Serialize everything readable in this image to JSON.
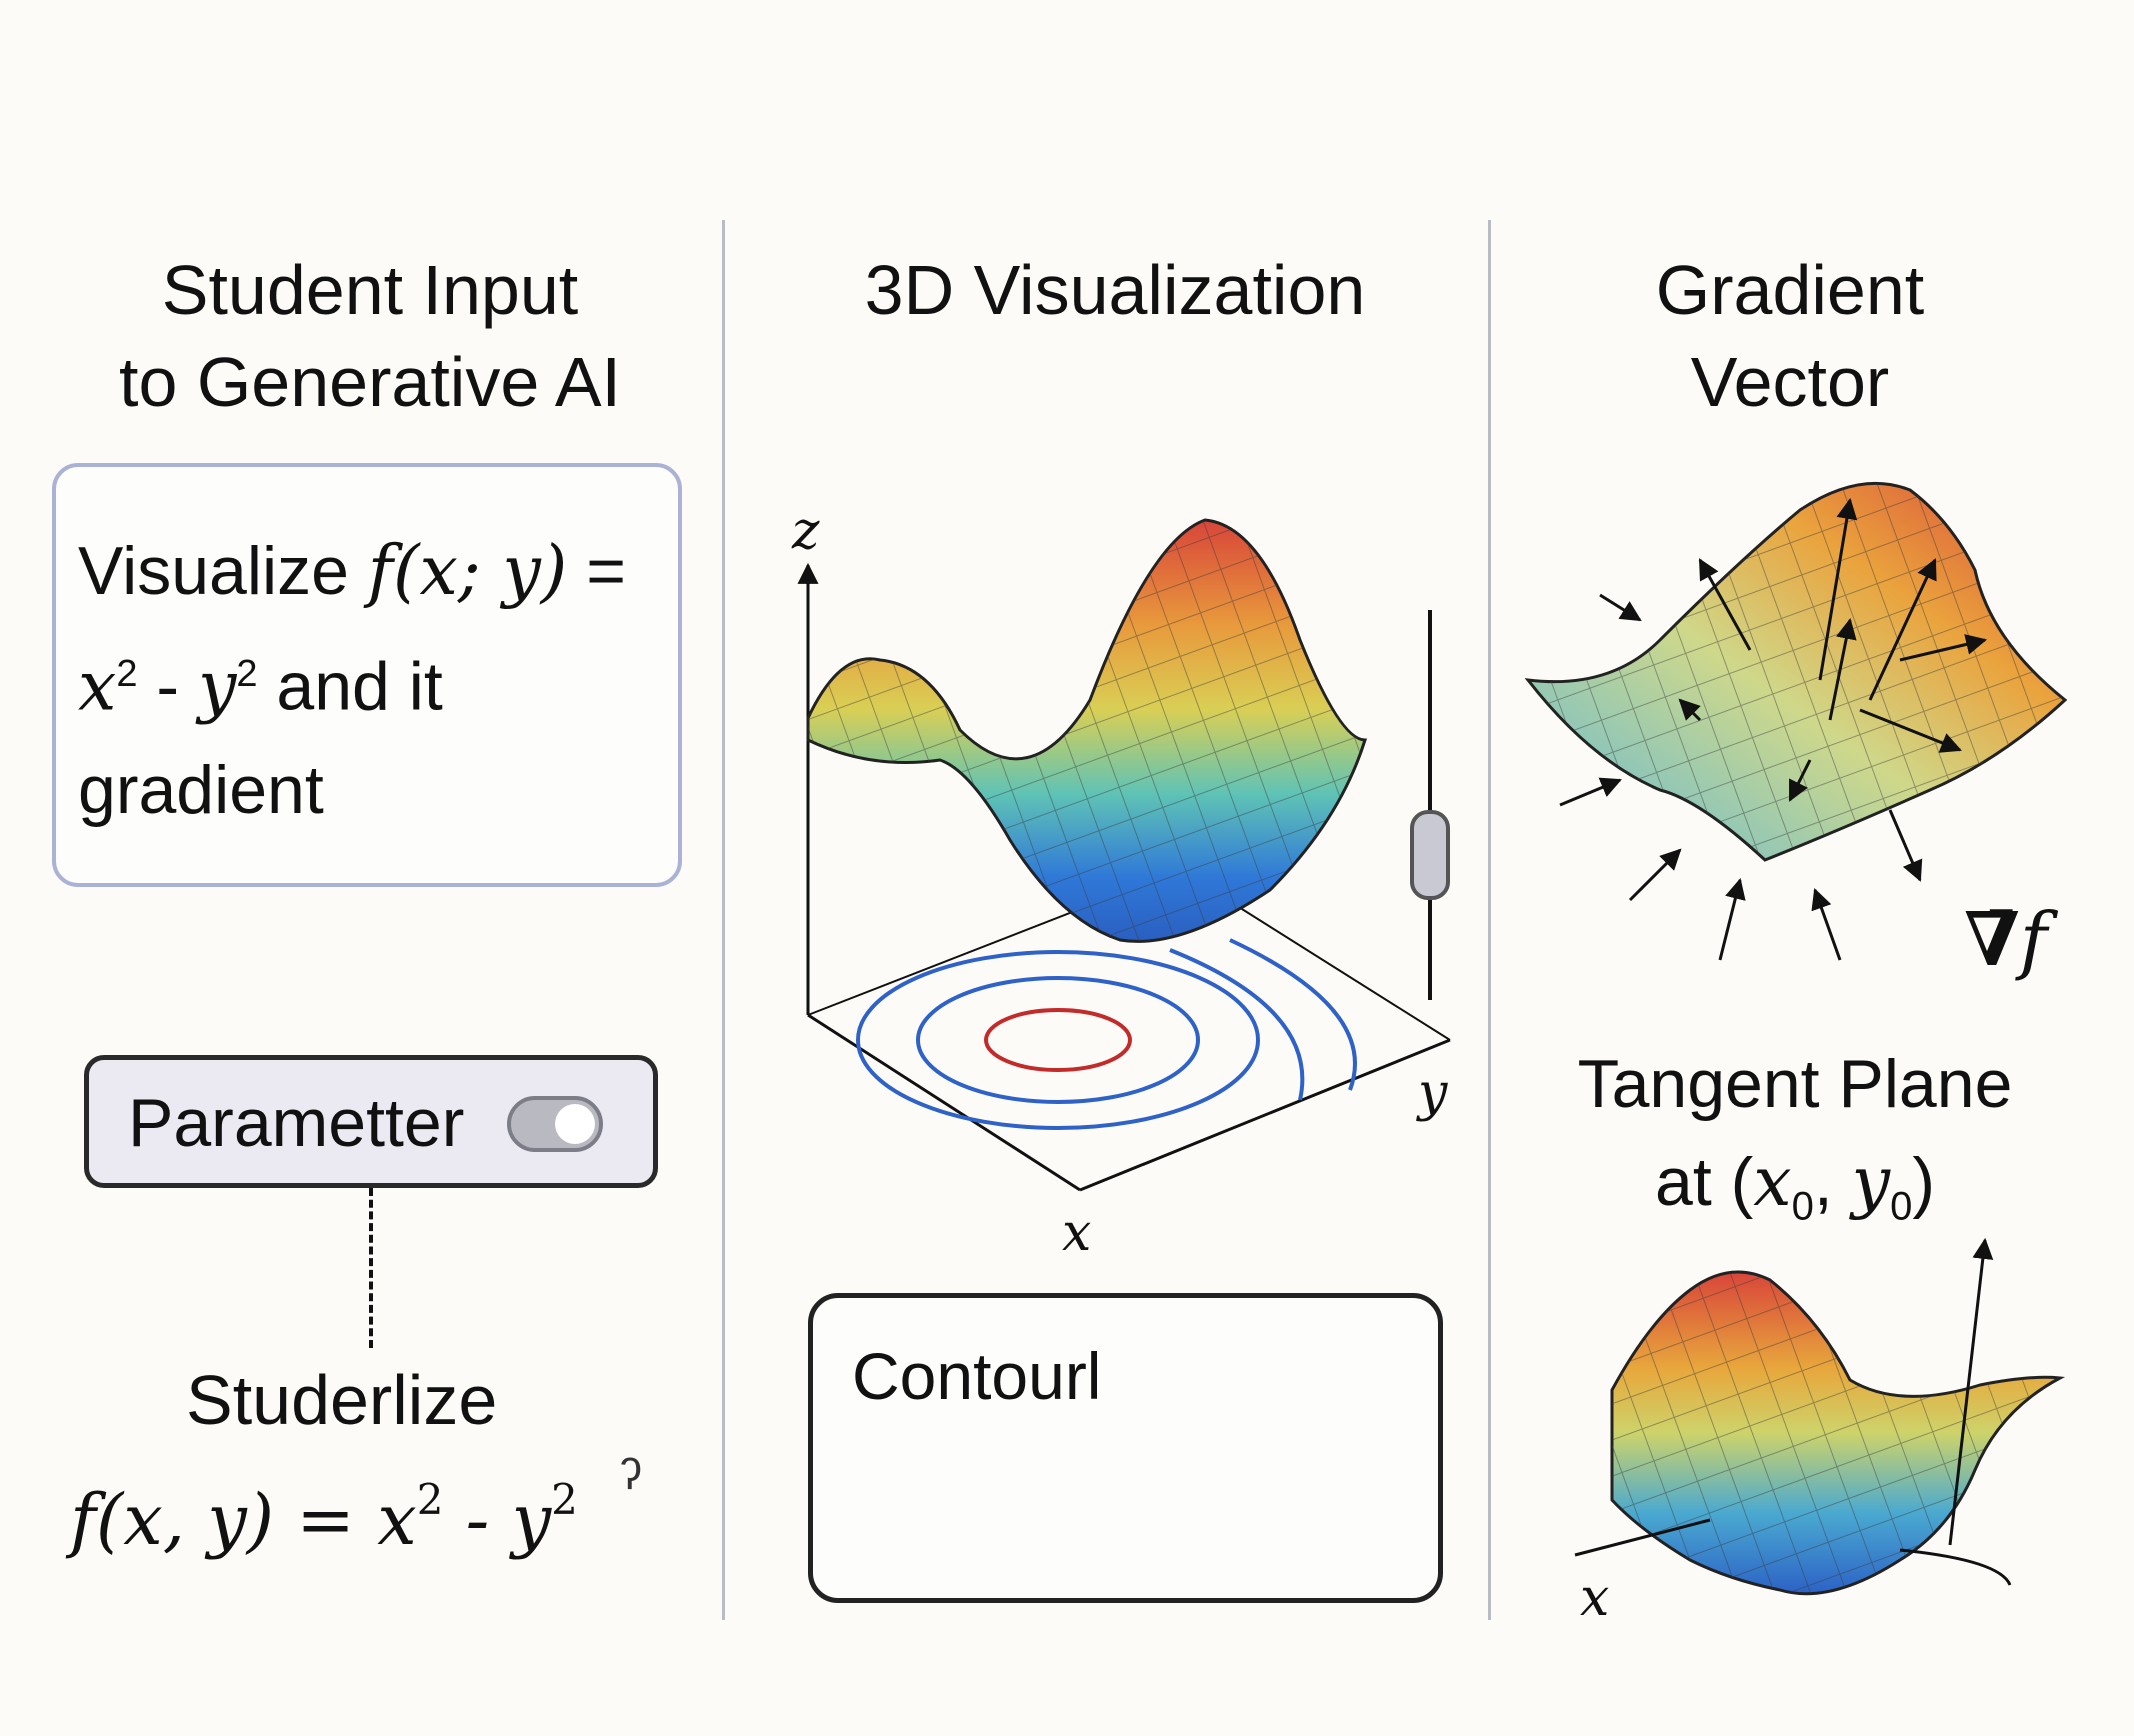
{
  "columns": {
    "left": {
      "title_line1": "Student Input",
      "title_line2": "to Generative AI",
      "prompt": {
        "part1": "Visualize ",
        "func": "f(x; y)",
        "part2": " =",
        "expr_x": "x",
        "expr_minus": " - ",
        "expr_y": "y",
        "exp": "2",
        "part3": " and it",
        "part4": "gradient"
      },
      "parameter": {
        "label": "Parametter",
        "toggle_state": "on"
      },
      "studer_label": "Studerlize",
      "formula": {
        "lhs": "f(x, y) = x",
        "mid": " - y",
        "exp": "2"
      },
      "stray_mark": "ʔ"
    },
    "middle": {
      "title": "3D Visualization",
      "axes": {
        "z": "z",
        "y": "y",
        "x": "x"
      },
      "contour_box_label": "Contourl"
    },
    "right": {
      "title_line1": "Gradient",
      "title_line2": "Vector",
      "gradient_symbol": "∇̄",
      "gradient_f": "f",
      "tangent_title_line1": "Tangent Plane",
      "tangent_title_prefix": "at (",
      "tangent_x": "x",
      "tangent_y": "y",
      "tangent_sub": "0",
      "tangent_sep": ", ",
      "tangent_suffix": ")",
      "axis_x": "x"
    }
  },
  "colors": {
    "surface_high": "#d8453a",
    "surface_mid": "#e8c94a",
    "surface_low": "#2f72d6",
    "contour_blue": "#2f62c8",
    "contour_red": "#c32b2b",
    "divider": "#b8bcc6",
    "prompt_border": "#aab3d6"
  }
}
